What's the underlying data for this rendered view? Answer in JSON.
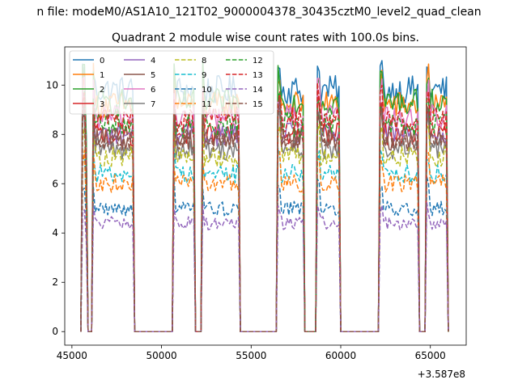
{
  "chart_data": {
    "type": "line",
    "suptitle": "n file: modeM0/AS1A10_121T02_9000004378_30435cztM0_level2_quad_clean",
    "title": "Quadrant 2 module wise count rates with 100.0s bins.",
    "xlabel": "",
    "ylabel": "",
    "x_offset_label": "+3.587e8",
    "xlim": [
      44600,
      67000
    ],
    "ylim": [
      -0.55,
      11.55
    ],
    "xticks": [
      45000,
      50000,
      55000,
      60000,
      65000
    ],
    "xtick_labels": [
      "45000",
      "50000",
      "55000",
      "60000",
      "65000"
    ],
    "yticks": [
      0,
      2,
      4,
      6,
      8,
      10
    ],
    "ytick_labels": [
      "0",
      "2",
      "4",
      "6",
      "8",
      "10"
    ],
    "legend": {
      "location": "top-left",
      "ncol": 4,
      "entries": [
        {
          "label": "0",
          "color": "#1f77b4",
          "style": "solid"
        },
        {
          "label": "1",
          "color": "#ff7f0e",
          "style": "solid"
        },
        {
          "label": "2",
          "color": "#2ca02c",
          "style": "solid"
        },
        {
          "label": "3",
          "color": "#d62728",
          "style": "solid"
        },
        {
          "label": "4",
          "color": "#9467bd",
          "style": "solid"
        },
        {
          "label": "5",
          "color": "#8c564b",
          "style": "solid"
        },
        {
          "label": "6",
          "color": "#e377c2",
          "style": "solid"
        },
        {
          "label": "7",
          "color": "#7f7f7f",
          "style": "solid"
        },
        {
          "label": "8",
          "color": "#bcbd22",
          "style": "dashed"
        },
        {
          "label": "9",
          "color": "#17becf",
          "style": "dashed"
        },
        {
          "label": "10",
          "color": "#1f77b4",
          "style": "dashed"
        },
        {
          "label": "11",
          "color": "#ff7f0e",
          "style": "dashed"
        },
        {
          "label": "12",
          "color": "#2ca02c",
          "style": "dashed"
        },
        {
          "label": "13",
          "color": "#d62728",
          "style": "dashed"
        },
        {
          "label": "14",
          "color": "#9467bd",
          "style": "dashed"
        },
        {
          "label": "15",
          "color": "#8c564b",
          "style": "dashed"
        }
      ]
    },
    "segments": [
      {
        "start": 45600,
        "end": 45850,
        "shape": "decay"
      },
      {
        "start": 46150,
        "end": 48450,
        "shape": "flat"
      },
      {
        "start": 50650,
        "end": 51850,
        "shape": "flat"
      },
      {
        "start": 52250,
        "end": 54300,
        "shape": "flat"
      },
      {
        "start": 56500,
        "end": 57900,
        "shape": "flat"
      },
      {
        "start": 58700,
        "end": 59950,
        "shape": "flat"
      },
      {
        "start": 62200,
        "end": 64350,
        "shape": "flat"
      },
      {
        "start": 64800,
        "end": 65950,
        "shape": "flat"
      }
    ],
    "series": [
      {
        "name": "0",
        "level": 9.8,
        "peak": 10.6
      },
      {
        "name": "1",
        "level": 9.2,
        "peak": 10.4
      },
      {
        "name": "2",
        "level": 9.3,
        "peak": 10.5
      },
      {
        "name": "3",
        "level": 8.0,
        "peak": 9.4
      },
      {
        "name": "4",
        "level": 8.0,
        "peak": 9.0
      },
      {
        "name": "5",
        "level": 7.8,
        "peak": 9.0
      },
      {
        "name": "6",
        "level": 8.7,
        "peak": 9.8
      },
      {
        "name": "7",
        "level": 7.4,
        "peak": 8.6
      },
      {
        "name": "8",
        "level": 7.1,
        "peak": 8.2
      },
      {
        "name": "9",
        "level": 6.4,
        "peak": 7.2
      },
      {
        "name": "10",
        "level": 5.0,
        "peak": 6.0
      },
      {
        "name": "11",
        "level": 6.0,
        "peak": 7.0
      },
      {
        "name": "12",
        "level": 8.4,
        "peak": 9.5
      },
      {
        "name": "13",
        "level": 8.6,
        "peak": 9.6
      },
      {
        "name": "14",
        "level": 4.4,
        "peak": 5.0
      },
      {
        "name": "15",
        "level": 7.8,
        "peak": 9.0
      }
    ]
  }
}
